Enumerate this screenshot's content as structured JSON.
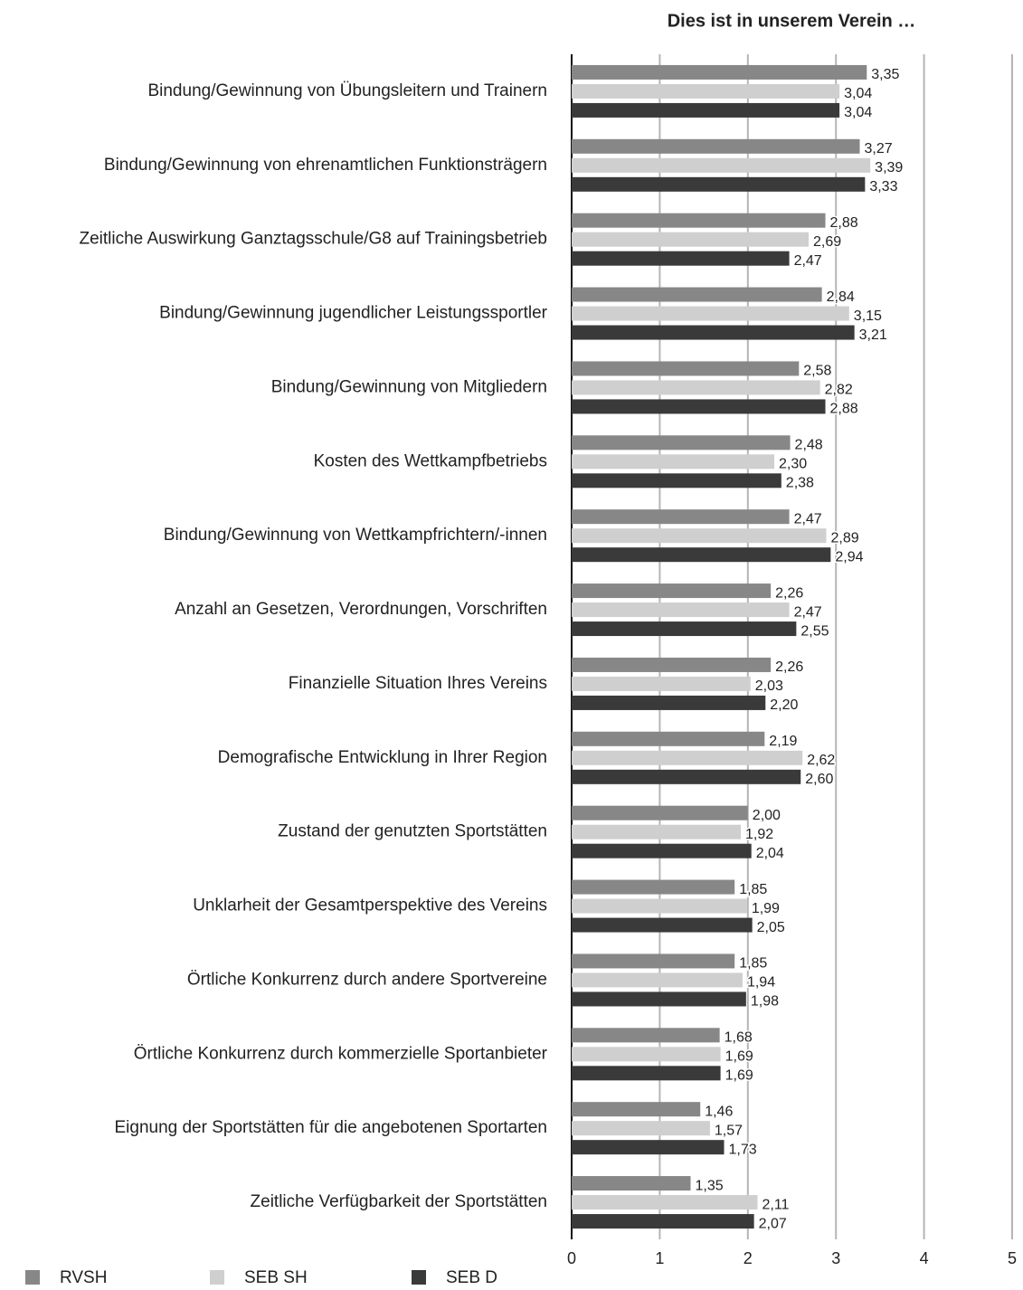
{
  "chart_data": {
    "type": "bar",
    "orientation": "horizontal",
    "title": "Dies ist in unserem Verein …",
    "categories": [
      "Bindung/Gewinnung von Übungsleitern und Trainern",
      "Bindung/Gewinnung von ehrenamtlichen Funktionsträgern",
      "Zeitliche Auswirkung Ganztagsschule/G8 auf Trainingsbetrieb",
      "Bindung/Gewinnung jugendlicher Leistungssportler",
      "Bindung/Gewinnung von Mitgliedern",
      "Kosten des Wettkampfbetriebs",
      "Bindung/Gewinnung von Wettkampfrichtern/-innen",
      "Anzahl an Gesetzen, Verordnungen, Vorschriften",
      "Finanzielle Situation Ihres Vereins",
      "Demografische Entwicklung in Ihrer Region",
      "Zustand der genutzten Sportstätten",
      "Unklarheit der Gesamtperspektive des Vereins",
      "Örtliche Konkurrenz durch andere Sportvereine",
      "Örtliche Konkurrenz durch kommerzielle Sportanbieter",
      "Eignung der Sportstätten für die angebotenen Sportarten",
      "Zeitliche Verfügbarkeit der Sportstätten"
    ],
    "series": [
      {
        "name": "RVSH",
        "color": "#878787",
        "values": [
          3.35,
          3.27,
          2.88,
          2.84,
          2.58,
          2.48,
          2.47,
          2.26,
          2.26,
          2.19,
          2.0,
          1.85,
          1.85,
          1.68,
          1.46,
          1.35
        ],
        "value_labels": [
          "3,35",
          "3,27",
          "2,88",
          "2,84",
          "2,58",
          "2,48",
          "2,47",
          "2,26",
          "2,26",
          "2,19",
          "2,00",
          "1,85",
          "1,85",
          "1,68",
          "1,46",
          "1,35"
        ]
      },
      {
        "name": "SEB SH",
        "color": "#cfcfcf",
        "values": [
          3.04,
          3.39,
          2.69,
          3.15,
          2.82,
          2.3,
          2.89,
          2.47,
          2.03,
          2.62,
          1.92,
          1.99,
          1.94,
          1.69,
          1.57,
          2.11
        ],
        "value_labels": [
          "3,04",
          "3,39",
          "2,69",
          "3,15",
          "2,82",
          "2,30",
          "2,89",
          "2,47",
          "2,03",
          "2,62",
          "1,92",
          "1,99",
          "1,94",
          "1,69",
          "1,57",
          "2,11"
        ]
      },
      {
        "name": "SEB D",
        "color": "#3a3a3a",
        "values": [
          3.04,
          3.33,
          2.47,
          3.21,
          2.88,
          2.38,
          2.94,
          2.55,
          2.2,
          2.6,
          2.04,
          2.05,
          1.98,
          1.69,
          1.73,
          2.07
        ],
        "value_labels": [
          "3,04",
          "3,33",
          "2,47",
          "3,21",
          "2,88",
          "2,38",
          "2,94",
          "2,55",
          "2,20",
          "2,60",
          "2,04",
          "2,05",
          "1,98",
          "1,69",
          "1,73",
          "2,07"
        ]
      }
    ],
    "xlim": [
      0,
      5
    ],
    "xticks": [
      0,
      1,
      2,
      3,
      4,
      5
    ],
    "grid": true,
    "legend": "bottom"
  }
}
